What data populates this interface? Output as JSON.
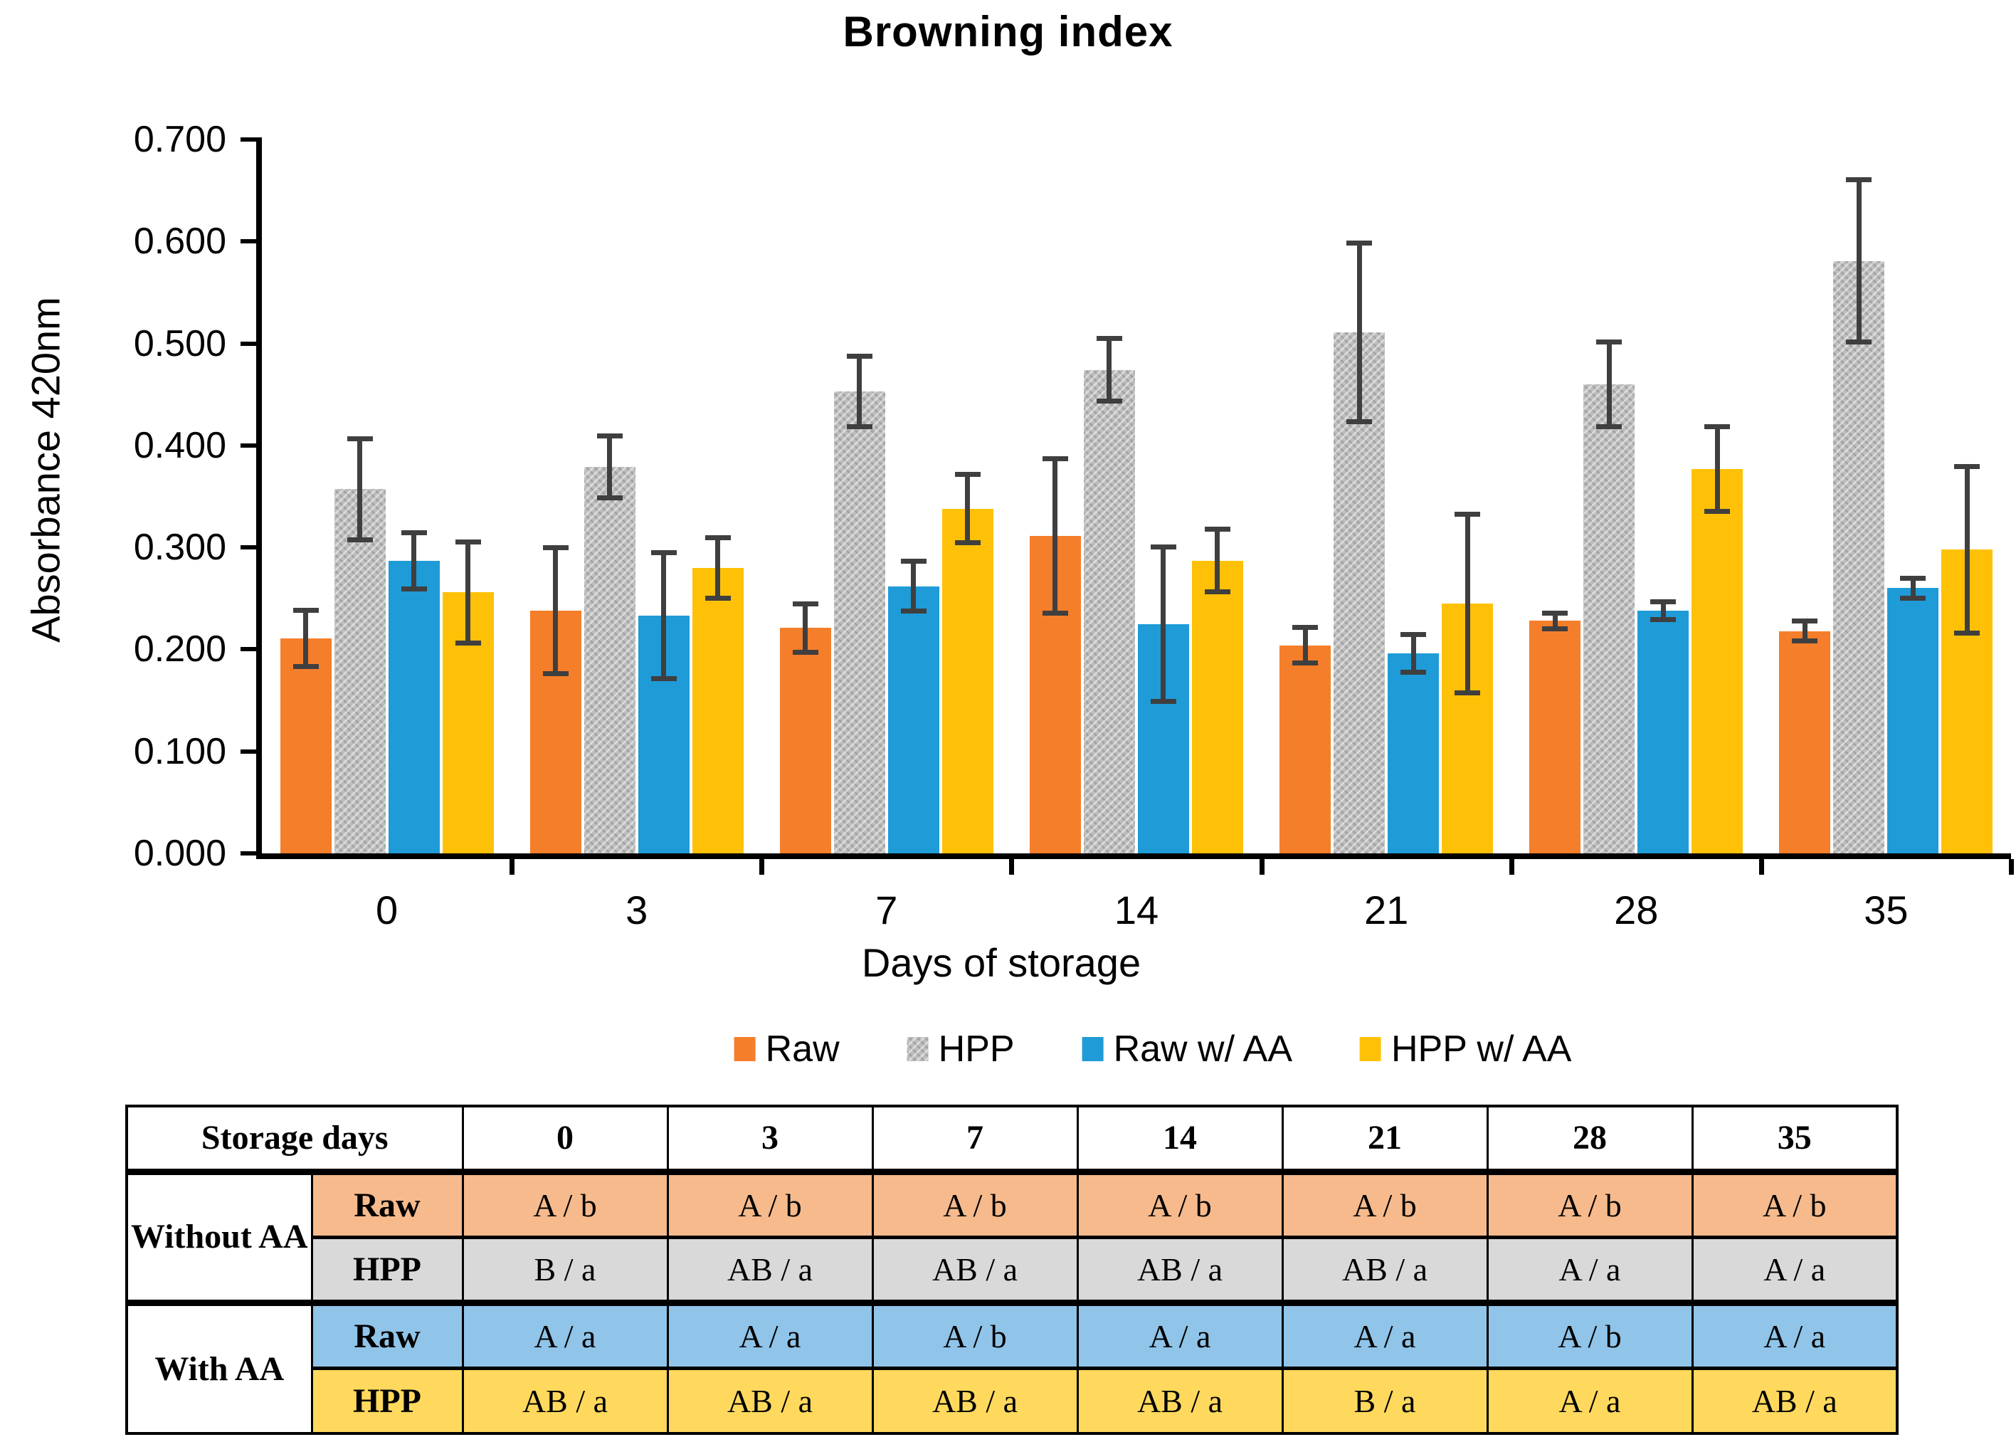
{
  "chart": {
    "title": "Browning index",
    "y_axis": {
      "label": "Absorbance 420nm",
      "ticks": [
        "0.000",
        "0.100",
        "0.200",
        "0.300",
        "0.400",
        "0.500",
        "0.600",
        "0.700"
      ]
    },
    "x_axis": {
      "label": "Days of storage",
      "categories": [
        "0",
        "3",
        "7",
        "14",
        "21",
        "28",
        "35"
      ]
    }
  },
  "chart_data": {
    "type": "bar",
    "title": "Browning index",
    "xlabel": "Days of storage",
    "ylabel": "Absorbance 420nm",
    "ylim": [
      0,
      0.7
    ],
    "grid": false,
    "legend_position": "bottom",
    "error_bars": true,
    "error_color": "#3f3f3f",
    "categories": [
      0,
      3,
      7,
      14,
      21,
      28,
      35
    ],
    "legend": [
      "Raw",
      "HPP",
      "Raw w/ AA",
      "HPP w/ AA"
    ],
    "series": [
      {
        "name": "Raw",
        "color": "#F57E2A",
        "pattern": false,
        "values": [
          0.211,
          0.238,
          0.221,
          0.311,
          0.204,
          0.228,
          0.218
        ],
        "errors": [
          0.028,
          0.062,
          0.024,
          0.076,
          0.018,
          0.008,
          0.01
        ]
      },
      {
        "name": "HPP",
        "color": "#BDBDBD",
        "pattern": true,
        "values": [
          0.357,
          0.379,
          0.453,
          0.474,
          0.511,
          0.46,
          0.581
        ],
        "errors": [
          0.05,
          0.031,
          0.035,
          0.031,
          0.088,
          0.042,
          0.08
        ]
      },
      {
        "name": "Raw w/ AA",
        "color": "#1F9BD7",
        "pattern": false,
        "values": [
          0.287,
          0.233,
          0.262,
          0.225,
          0.196,
          0.238,
          0.26
        ],
        "errors": [
          0.028,
          0.062,
          0.025,
          0.076,
          0.019,
          0.009,
          0.01
        ]
      },
      {
        "name": "HPP w/ AA",
        "color": "#FFC107",
        "pattern": false,
        "values": [
          0.256,
          0.28,
          0.338,
          0.287,
          0.245,
          0.377,
          0.298
        ],
        "errors": [
          0.05,
          0.03,
          0.034,
          0.031,
          0.088,
          0.042,
          0.082
        ]
      }
    ]
  },
  "table": {
    "corner_label": "Storage days",
    "columns": [
      "0",
      "3",
      "7",
      "14",
      "21",
      "28",
      "35"
    ],
    "row_groups": [
      {
        "label": "Without AA",
        "rows": [
          {
            "name": "Raw",
            "bg": "#F6BA8D",
            "cells": [
              "A / b",
              "A / b",
              "A / b",
              "A / b",
              "A / b",
              "A / b",
              "A / b"
            ]
          },
          {
            "name": "HPP",
            "bg": "#D9D9D9",
            "cells": [
              "B / a",
              "AB / a",
              "AB / a",
              "AB / a",
              "AB / a",
              "A / a",
              "A / a"
            ]
          }
        ]
      },
      {
        "label": "With AA",
        "rows": [
          {
            "name": "Raw",
            "bg": "#90C4E9",
            "cells": [
              "A / a",
              "A / a",
              "A / b",
              "A / a",
              "A / a",
              "A / b",
              "A / a"
            ]
          },
          {
            "name": "HPP",
            "bg": "#FFD95D",
            "cells": [
              "AB / a",
              "AB / a",
              "AB / a",
              "AB / a",
              "B / a",
              "A / a",
              "AB / a"
            ]
          }
        ]
      }
    ]
  }
}
